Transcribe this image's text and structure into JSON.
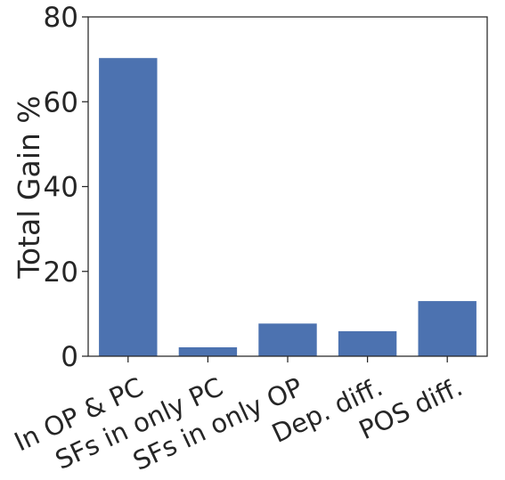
{
  "chart_data": {
    "type": "bar",
    "categories": [
      "In OP & PC",
      "SFs in only PC",
      "SFs in only OP",
      "Dep. diff.",
      "POS diff."
    ],
    "values": [
      70.3,
      2.1,
      7.7,
      5.9,
      13.0
    ],
    "title": "",
    "xlabel": "",
    "ylabel": "Total Gain %",
    "ylim": [
      0,
      80
    ],
    "yticks": [
      0,
      20,
      40,
      60,
      80
    ],
    "grid": false,
    "legend": "none",
    "bar_color": "#4c72b0"
  }
}
